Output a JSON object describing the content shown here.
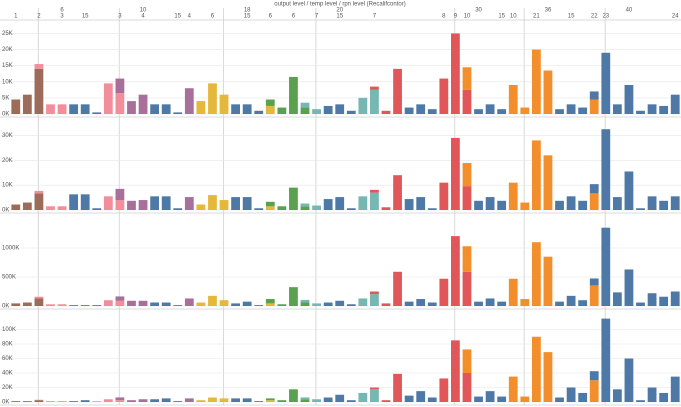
{
  "chart_data": {
    "type": "bar",
    "title": "output level / temp level / rpn level (Recalifcontor)",
    "categories": [
      "1",
      null,
      "2",
      null,
      "3",
      null,
      "15",
      null,
      null,
      "3",
      null,
      "4",
      null,
      null,
      "15",
      "4",
      null,
      "6",
      null,
      null,
      "15",
      null,
      "6",
      null,
      "6",
      null,
      "7",
      null,
      "15",
      null,
      null,
      "7",
      null,
      null,
      null,
      null,
      null,
      "8",
      "9",
      "10",
      null,
      null,
      "15",
      "10",
      null,
      "21",
      null,
      null,
      "15",
      null,
      "22",
      "23",
      null,
      null,
      null,
      null,
      null,
      "24"
    ],
    "group_labels": [
      null,
      null,
      null,
      null,
      "6",
      null,
      null,
      null,
      null,
      null,
      null,
      "10",
      null,
      null,
      null,
      null,
      null,
      null,
      null,
      null,
      "18",
      null,
      null,
      null,
      null,
      null,
      null,
      null,
      "20",
      null,
      null,
      null,
      null,
      null,
      null,
      null,
      null,
      null,
      null,
      null,
      "30",
      null,
      null,
      null,
      null,
      null,
      "36",
      null,
      null,
      null,
      null,
      null,
      null,
      "40",
      null,
      null,
      null,
      null
    ],
    "bar_colors": [
      [
        "#9c6b5a"
      ],
      [
        "#9c6b5a"
      ],
      [
        "#9c6b5a",
        "#f28e9b"
      ],
      [
        "#f28e9b"
      ],
      [
        "#f28e9b"
      ],
      [
        "#4e79a7"
      ],
      [
        "#4e79a7"
      ],
      [
        "#4e79a7"
      ],
      [
        "#f28e9b"
      ],
      [
        "#f28e9b",
        "#a86f9a"
      ],
      [
        "#a86f9a"
      ],
      [
        "#a86f9a"
      ],
      [
        "#4e79a7"
      ],
      [
        "#4e79a7"
      ],
      [
        "#4e79a7"
      ],
      [
        "#a86f9a"
      ],
      [
        "#e5b73b"
      ],
      [
        "#e5b73b"
      ],
      [
        "#e5b73b"
      ],
      [
        "#4e79a7"
      ],
      [
        "#4e79a7"
      ],
      [
        "#4e79a7"
      ],
      [
        "#e5b73b",
        "#59a14f"
      ],
      [
        "#59a14f"
      ],
      [
        "#59a14f"
      ],
      [
        "#59a14f",
        "#76b7b2"
      ],
      [
        "#76b7b2"
      ],
      [
        "#4e79a7"
      ],
      [
        "#4e79a7"
      ],
      [
        "#4e79a7"
      ],
      [
        "#76b7b2"
      ],
      [
        "#76b7b2",
        "#e15759"
      ],
      [
        "#e15759"
      ],
      [
        "#e15759"
      ],
      [
        "#4e79a7"
      ],
      [
        "#4e79a7"
      ],
      [
        "#4e79a7"
      ],
      [
        "#e15759"
      ],
      [
        "#e15759"
      ],
      [
        "#e15759",
        "#f28e2b"
      ],
      [
        "#4e79a7"
      ],
      [
        "#4e79a7"
      ],
      [
        "#4e79a7"
      ],
      [
        "#f28e2b"
      ],
      [
        "#f28e2b"
      ],
      [
        "#f28e2b"
      ],
      [
        "#f28e2b"
      ],
      [
        "#4e79a7"
      ],
      [
        "#4e79a7"
      ],
      [
        "#4e79a7"
      ],
      [
        "#f28e2b",
        "#4e79a7"
      ],
      [
        "#4e79a7"
      ],
      [
        "#4e79a7"
      ],
      [
        "#4e79a7"
      ],
      [
        "#4e79a7"
      ],
      [
        "#4e79a7"
      ],
      [
        "#4e79a7"
      ],
      [
        "#4e79a7"
      ]
    ],
    "grid": true,
    "panels": [
      {
        "ylim": [
          0,
          27000
        ],
        "yticks": [
          {
            "value": 0,
            "label": "0K"
          },
          {
            "value": 5000,
            "label": "5K"
          },
          {
            "value": 10000,
            "label": "10K"
          },
          {
            "value": 15000,
            "label": "15K"
          },
          {
            "value": 20000,
            "label": "20K"
          },
          {
            "value": 25000,
            "label": "25K"
          }
        ],
        "values": [
          [
            4500
          ],
          [
            6000
          ],
          [
            14000,
            1500
          ],
          [
            3000
          ],
          [
            3000
          ],
          [
            3000
          ],
          [
            3000
          ],
          [
            500
          ],
          [
            9500
          ],
          [
            6500,
            4500
          ],
          [
            4000
          ],
          [
            6000
          ],
          [
            3000
          ],
          [
            3000
          ],
          [
            500
          ],
          [
            8000
          ],
          [
            4000
          ],
          [
            9500
          ],
          [
            6000
          ],
          [
            3000
          ],
          [
            3000
          ],
          [
            1000
          ],
          [
            2500,
            2000
          ],
          [
            2000
          ],
          [
            11500
          ],
          [
            2000,
            1500
          ],
          [
            1500
          ],
          [
            2500
          ],
          [
            3000
          ],
          [
            1000
          ],
          [
            5000
          ],
          [
            7500,
            1000
          ],
          [
            1000
          ],
          [
            14000
          ],
          [
            2000
          ],
          [
            3000
          ],
          [
            1500
          ],
          [
            11000
          ],
          [
            25000
          ],
          [
            7500,
            7000
          ],
          [
            1500
          ],
          [
            3000
          ],
          [
            1500
          ],
          [
            9000
          ],
          [
            2000
          ],
          [
            20000
          ],
          [
            13500
          ],
          [
            1500
          ],
          [
            3000
          ],
          [
            2000
          ],
          [
            4500,
            2500
          ],
          [
            19000
          ],
          [
            3000
          ],
          [
            9000
          ],
          [
            1000
          ],
          [
            3000
          ],
          [
            2500
          ],
          [
            6000
          ]
        ]
      },
      {
        "ylim": [
          0,
          35000
        ],
        "yticks": [
          {
            "value": 0,
            "label": "0K"
          },
          {
            "value": 10000,
            "label": "10K"
          },
          {
            "value": 20000,
            "label": "20K"
          },
          {
            "value": 30000,
            "label": "30K"
          }
        ],
        "values": [
          [
            2200
          ],
          [
            3000
          ],
          [
            6700,
            1000
          ],
          [
            1500
          ],
          [
            1500
          ],
          [
            6300
          ],
          [
            6300
          ],
          [
            700
          ],
          [
            5500
          ],
          [
            4000,
            4500
          ],
          [
            3700
          ],
          [
            4000
          ],
          [
            5500
          ],
          [
            5500
          ],
          [
            700
          ],
          [
            5200
          ],
          [
            2200
          ],
          [
            6000
          ],
          [
            4000
          ],
          [
            5200
          ],
          [
            5200
          ],
          [
            700
          ],
          [
            1500,
            1800
          ],
          [
            1500
          ],
          [
            9000
          ],
          [
            1500,
            1100
          ],
          [
            1800
          ],
          [
            4400
          ],
          [
            5200
          ],
          [
            700
          ],
          [
            5500
          ],
          [
            7000,
            1100
          ],
          [
            1100
          ],
          [
            14000
          ],
          [
            4400
          ],
          [
            5200
          ],
          [
            700
          ],
          [
            11000
          ],
          [
            29000
          ],
          [
            9600,
            9300
          ],
          [
            3700
          ],
          [
            5200
          ],
          [
            3700
          ],
          [
            11000
          ],
          [
            3000
          ],
          [
            28000
          ],
          [
            22000
          ],
          [
            3700
          ],
          [
            5500
          ],
          [
            3700
          ],
          [
            6700,
            3700
          ],
          [
            32500
          ],
          [
            5200
          ],
          [
            15500
          ],
          [
            700
          ],
          [
            5500
          ],
          [
            3700
          ],
          [
            5500
          ]
        ]
      },
      {
        "ylim": [
          0,
          1500000
        ],
        "yticks": [
          {
            "value": 0,
            "label": "0K"
          },
          {
            "value": 500000,
            "label": "500K"
          },
          {
            "value": 1000000,
            "label": "1000K"
          }
        ],
        "values": [
          [
            45000
          ],
          [
            60000
          ],
          [
            130000,
            30000
          ],
          [
            30000
          ],
          [
            30000
          ],
          [
            15000
          ],
          [
            15000
          ],
          [
            15000
          ],
          [
            100000
          ],
          [
            90000,
            75000
          ],
          [
            90000
          ],
          [
            90000
          ],
          [
            60000
          ],
          [
            60000
          ],
          [
            15000
          ],
          [
            130000
          ],
          [
            60000
          ],
          [
            175000
          ],
          [
            100000
          ],
          [
            45000
          ],
          [
            75000
          ],
          [
            15000
          ],
          [
            45000,
            75000
          ],
          [
            30000
          ],
          [
            325000
          ],
          [
            60000,
            45000
          ],
          [
            45000
          ],
          [
            60000
          ],
          [
            90000
          ],
          [
            30000
          ],
          [
            130000
          ],
          [
            205000,
            45000
          ],
          [
            45000
          ],
          [
            590000
          ],
          [
            75000
          ],
          [
            120000
          ],
          [
            60000
          ],
          [
            470000
          ],
          [
            1205000
          ],
          [
            590000,
            440000
          ],
          [
            75000
          ],
          [
            130000
          ],
          [
            75000
          ],
          [
            470000
          ],
          [
            120000
          ],
          [
            1100000
          ],
          [
            850000
          ],
          [
            75000
          ],
          [
            175000
          ],
          [
            100000
          ],
          [
            355000,
            120000
          ],
          [
            1350000
          ],
          [
            235000
          ],
          [
            630000
          ],
          [
            60000
          ],
          [
            220000
          ],
          [
            160000
          ],
          [
            250000
          ]
        ]
      },
      {
        "ylim": [
          0,
          120000
        ],
        "yticks": [
          {
            "value": 0,
            "label": "0K"
          },
          {
            "value": 20000,
            "label": "20K"
          },
          {
            "value": 40000,
            "label": "40K"
          },
          {
            "value": 60000,
            "label": "60K"
          },
          {
            "value": 80000,
            "label": "80K"
          },
          {
            "value": 100000,
            "label": "100K"
          }
        ],
        "values": [
          [
            1200
          ],
          [
            1200
          ],
          [
            2500,
            600
          ],
          [
            1200
          ],
          [
            1200
          ],
          [
            1200
          ],
          [
            2500
          ],
          [
            600
          ],
          [
            3800
          ],
          [
            2500,
            3800
          ],
          [
            2500
          ],
          [
            3800
          ],
          [
            3800
          ],
          [
            5000
          ],
          [
            1200
          ],
          [
            5000
          ],
          [
            2500
          ],
          [
            6200
          ],
          [
            5000
          ],
          [
            5000
          ],
          [
            5000
          ],
          [
            1200
          ],
          [
            2500,
            2500
          ],
          [
            2500
          ],
          [
            17500
          ],
          [
            3800,
            2500
          ],
          [
            3800
          ],
          [
            6200
          ],
          [
            10000
          ],
          [
            2500
          ],
          [
            12500
          ],
          [
            17500,
            2500
          ],
          [
            2500
          ],
          [
            38800
          ],
          [
            8800
          ],
          [
            15000
          ],
          [
            6200
          ],
          [
            32500
          ],
          [
            85000
          ],
          [
            40000,
            32500
          ],
          [
            7500
          ],
          [
            15000
          ],
          [
            7500
          ],
          [
            35000
          ],
          [
            7500
          ],
          [
            90000
          ],
          [
            68800
          ],
          [
            6200
          ],
          [
            20000
          ],
          [
            12500
          ],
          [
            30000,
            12500
          ],
          [
            115000
          ],
          [
            17500
          ],
          [
            60000
          ],
          [
            2500
          ],
          [
            20000
          ],
          [
            12500
          ],
          [
            35000
          ]
        ]
      }
    ]
  }
}
